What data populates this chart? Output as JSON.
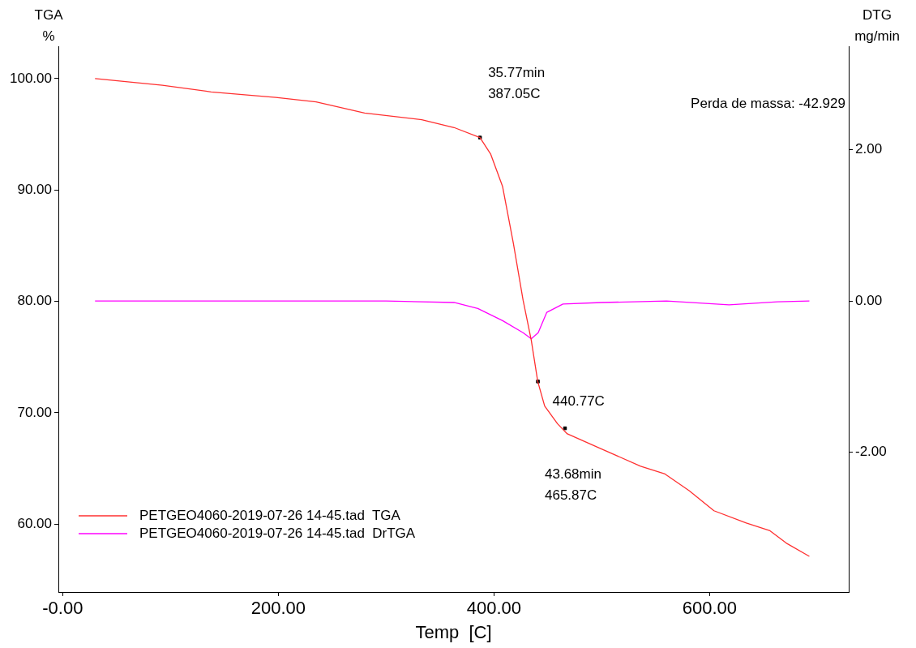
{
  "chart_data": {
    "type": "line",
    "xlabel": "Temp  [C]",
    "ylabel": "TGA\n%",
    "y2label": "DTG\nmg/min",
    "xlim": [
      -4,
      729
    ],
    "xticks": [
      {
        "value": 0,
        "label": "-0.00"
      },
      {
        "value": 200,
        "label": "200.00"
      },
      {
        "value": 400,
        "label": "400.00"
      },
      {
        "value": 600,
        "label": "600.00"
      }
    ],
    "ylim": [
      53.9,
      102.9
    ],
    "yticks": [
      {
        "value": 60,
        "label": "60.00"
      },
      {
        "value": 70,
        "label": "70.00"
      },
      {
        "value": 80,
        "label": "80.00"
      },
      {
        "value": 90,
        "label": "90.00"
      },
      {
        "value": 100,
        "label": "100.00"
      }
    ],
    "y2lim": [
      -3.85,
      3.37
    ],
    "y2ticks": [
      {
        "value": -2,
        "label": "-2.00"
      },
      {
        "value": 0,
        "label": "0.00"
      },
      {
        "value": 2,
        "label": "2.00"
      }
    ],
    "grid": false,
    "legend": "bottom left",
    "line_style": "solid",
    "series": [
      {
        "name": "PETGEO4060-2019-07-26 14-45.tad  TGA",
        "color": "#ff3030",
        "x": [
          30,
          92.5,
          137.6,
          197.7,
          235,
          280,
          333,
          363,
          387,
          397,
          408,
          418,
          427,
          434.6,
          440.6,
          447,
          459,
          468,
          498.5,
          536,
          558.6,
          581,
          604,
          634,
          656,
          671,
          692.5
        ],
        "values": [
          100,
          99.4,
          98.8,
          98.3,
          97.9,
          96.9,
          96.3,
          95.6,
          94.7,
          93.2,
          90.3,
          85.2,
          80.1,
          76.5,
          72.8,
          70.6,
          69,
          68.1,
          66.8,
          65.2,
          64.5,
          63,
          61.2,
          60.1,
          59.4,
          58.3,
          57.1
        ]
      },
      {
        "name": "PETGEO4060-2019-07-26 14-45.tad  DrTGA",
        "color": "#ff00ff",
        "axis": "y2",
        "x": [
          30,
          100,
          200,
          300,
          363,
          385,
          408,
          427,
          434.6,
          441,
          449,
          464,
          500,
          560,
          618,
          663,
          692.5
        ],
        "values": [
          0,
          0,
          0,
          0,
          -0.02,
          -0.1,
          -0.26,
          -0.42,
          -0.5,
          -0.42,
          -0.15,
          -0.04,
          -0.02,
          0,
          -0.05,
          -0.01,
          0
        ]
      },
      {
        "type": "scatter",
        "color": "#000000",
        "x": [
          387.05,
          440.77,
          465.87
        ],
        "values": [
          94.7,
          72.8,
          68.6
        ]
      }
    ],
    "annotations": [
      {
        "text": "35.77min\n387.05C",
        "x": 387.05,
        "y": 94.7
      },
      {
        "text": "440.77C",
        "x": 440.77,
        "y": 72.8
      },
      {
        "text": "43.68min\n465.87C",
        "x": 465.87,
        "y": 68.6
      },
      "Perda de massa: -42.929"
    ]
  }
}
